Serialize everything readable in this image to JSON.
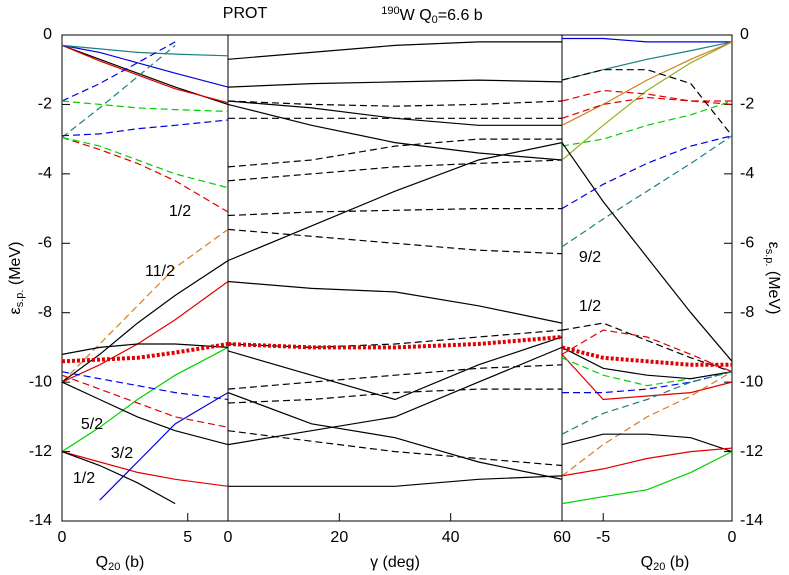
{
  "title": "PROT",
  "nucleus": {
    "mass": "190",
    "symbol": "W Q",
    "sub": "0",
    "rest": "=6.6 b"
  },
  "y_label": {
    "main": "ε",
    "sub": "s.p.",
    "unit": " (MeV)"
  },
  "chart_data": [
    {
      "type": "line",
      "x_label": {
        "main": "Q",
        "sub": "20",
        "unit": " (b)"
      },
      "xlim": [
        0,
        6.6
      ],
      "xticks": [
        0,
        5
      ],
      "ylim": [
        -14,
        0
      ],
      "yticks": [
        -14,
        -12,
        -10,
        -8,
        -6,
        -4,
        -2,
        0
      ],
      "annotations": [
        "1/2",
        "11/2",
        "5/2",
        "3/2",
        "1/2"
      ],
      "x": [
        0,
        1.5,
        3,
        4.5,
        6.6
      ],
      "series": [
        {
          "color": "#000",
          "style": "solid",
          "values": [
            -0.3,
            -0.7,
            -1.1,
            -1.5,
            -2.0
          ]
        },
        {
          "color": "#e00000",
          "style": "solid",
          "values": [
            -0.3,
            -0.75,
            -1.15,
            -1.55,
            -1.95
          ]
        },
        {
          "color": "#0000e0",
          "style": "solid",
          "values": [
            -0.3,
            -0.5,
            -0.8,
            -1.1,
            -1.5
          ]
        },
        {
          "color": "#1a8080",
          "style": "solid",
          "values": [
            -0.3,
            -0.4,
            -0.5,
            -0.55,
            -0.6
          ]
        },
        {
          "color": "#0000e0",
          "style": "dashed",
          "values": [
            -1.9,
            -1.4,
            -0.8,
            -0.2,
            null
          ]
        },
        {
          "color": "#1a8080",
          "style": "dashed",
          "values": [
            -2.95,
            -2.1,
            -1.2,
            -0.3,
            null
          ]
        },
        {
          "color": "#00d000",
          "style": "dashed",
          "values": [
            -1.9,
            -2.0,
            -2.1,
            -2.15,
            -2.2
          ]
        },
        {
          "color": "#0000e0",
          "style": "dashed",
          "values": [
            -2.9,
            -2.85,
            -2.7,
            -2.6,
            -2.45
          ]
        },
        {
          "color": "#e00000",
          "style": "dashed",
          "values": [
            -2.95,
            -3.3,
            -3.7,
            -4.2,
            -5.1
          ]
        },
        {
          "color": "#00d000",
          "style": "dashed",
          "values": [
            -2.95,
            -3.2,
            -3.6,
            -4.0,
            -4.4
          ]
        },
        {
          "color": "#d08020",
          "style": "dashed",
          "values": [
            -10,
            -8.9,
            -7.8,
            -6.7,
            -5.6
          ]
        },
        {
          "color": "#000",
          "style": "solid",
          "values": [
            -10,
            -9.2,
            -8.3,
            -7.5,
            -6.5
          ]
        },
        {
          "color": "#e00000",
          "style": "solid",
          "values": [
            -10,
            -9.5,
            -8.9,
            -8.2,
            -7.1
          ]
        },
        {
          "color": "#00d000",
          "style": "solid",
          "values": [
            -12,
            -11.3,
            -10.5,
            -9.8,
            -9.0
          ]
        },
        {
          "color": "#000",
          "style": "solid",
          "values": [
            -9.2,
            -9.0,
            -8.9,
            -8.9,
            -9.0
          ]
        },
        {
          "color": "#0000e0",
          "style": "dashed",
          "values": [
            -9.7,
            -9.9,
            -10.1,
            -10.3,
            -10.5
          ]
        },
        {
          "color": "#e00000",
          "style": "dashed",
          "values": [
            -9.8,
            -10.2,
            -10.6,
            -11.0,
            -11.3
          ]
        },
        {
          "color": "#000",
          "style": "solid",
          "values": [
            -10,
            -10.5,
            -11.0,
            -11.4,
            -11.8
          ]
        },
        {
          "color": "#e00000",
          "style": "solid",
          "values": [
            -12,
            -12.3,
            -12.6,
            -12.8,
            -13.0
          ]
        },
        {
          "color": "#0000e0",
          "style": "solid",
          "values": [
            null,
            -13.4,
            -12.3,
            -11.2,
            -10.3
          ]
        },
        {
          "color": "#000",
          "style": "solid",
          "values": [
            -12,
            -12.4,
            -12.9,
            -13.5,
            null
          ]
        },
        {
          "color": "#e00000",
          "style": "dotted",
          "values": [
            -9.4,
            -9.35,
            -9.3,
            -9.15,
            -8.9
          ]
        }
      ]
    },
    {
      "type": "line",
      "x_label": {
        "main": "γ",
        "unit": " (deg)"
      },
      "xlim": [
        0,
        60
      ],
      "xticks": [
        0,
        20,
        40,
        60
      ],
      "ylim": [
        -14,
        0
      ],
      "x": [
        0,
        15,
        30,
        45,
        60
      ],
      "series": [
        {
          "color": "#000",
          "style": "solid",
          "values": [
            -0.7,
            -0.5,
            -0.3,
            -0.2,
            -0.2
          ]
        },
        {
          "color": "#000",
          "style": "solid",
          "values": [
            -1.5,
            -1.4,
            -1.35,
            -1.3,
            -1.35
          ]
        },
        {
          "color": "#000",
          "style": "solid",
          "values": [
            -1.9,
            -2.1,
            -2.4,
            -2.6,
            -2.6
          ]
        },
        {
          "color": "#000",
          "style": "solid",
          "values": [
            -2.0,
            -2.6,
            -3.1,
            -3.4,
            -3.6
          ]
        },
        {
          "color": "#000",
          "style": "dashed",
          "values": [
            -1.9,
            -2.0,
            -2.05,
            -2.0,
            -1.9
          ]
        },
        {
          "color": "#000",
          "style": "dashed",
          "values": [
            -2.4,
            -2.4,
            -2.4,
            -2.4,
            -2.4
          ]
        },
        {
          "color": "#000",
          "style": "dashed",
          "values": [
            -3.8,
            -3.6,
            -3.2,
            -3.0,
            -3.0
          ]
        },
        {
          "color": "#000",
          "style": "dashed",
          "values": [
            -4.2,
            -4.0,
            -3.8,
            -3.7,
            -3.6
          ]
        },
        {
          "color": "#000",
          "style": "dashed",
          "values": [
            -5.2,
            -5.1,
            -5.05,
            -5.0,
            -5.0
          ]
        },
        {
          "color": "#000",
          "style": "dashed",
          "values": [
            -5.6,
            -5.8,
            -6.0,
            -6.2,
            -6.3
          ]
        },
        {
          "color": "#000",
          "style": "solid",
          "values": [
            -6.5,
            -5.5,
            -4.5,
            -3.6,
            -3.1
          ]
        },
        {
          "color": "#000",
          "style": "solid",
          "values": [
            -7.1,
            -7.3,
            -7.4,
            -7.8,
            -8.3
          ]
        },
        {
          "color": "#000",
          "style": "dashed",
          "values": [
            -8.9,
            -9.0,
            -8.9,
            -8.7,
            -8.5
          ]
        },
        {
          "color": "#000",
          "style": "solid",
          "values": [
            -9.1,
            -9.8,
            -10.5,
            -9.5,
            -8.7
          ]
        },
        {
          "color": "#000",
          "style": "dashed",
          "values": [
            -10.2,
            -10.0,
            -9.8,
            -9.6,
            -9.5
          ]
        },
        {
          "color": "#000",
          "style": "dashed",
          "values": [
            -10.6,
            -10.5,
            -10.3,
            -10.2,
            -10.2
          ]
        },
        {
          "color": "#000",
          "style": "solid",
          "values": [
            -10.3,
            -11.2,
            -11.6,
            -12.3,
            -12.8
          ]
        },
        {
          "color": "#000",
          "style": "dashed",
          "values": [
            -11.4,
            -11.7,
            -12.0,
            -12.2,
            -12.4
          ]
        },
        {
          "color": "#000",
          "style": "solid",
          "values": [
            -13.0,
            -13.0,
            -13.0,
            -12.8,
            -12.7
          ]
        },
        {
          "color": "#000",
          "style": "solid",
          "values": [
            -11.8,
            -11.4,
            -11.0,
            -10.0,
            -9.0
          ]
        },
        {
          "color": "#e00000",
          "style": "dotted",
          "values": [
            -8.9,
            -9.0,
            -9.0,
            -8.9,
            -8.7
          ]
        }
      ]
    },
    {
      "type": "line",
      "x_label": {
        "main": "Q",
        "sub": "20",
        "unit": " (b)"
      },
      "xlim": [
        -6.6,
        0
      ],
      "xticks": [
        -5,
        0
      ],
      "ylim": [
        -14,
        0
      ],
      "annotations": [
        "9/2",
        "1/2"
      ],
      "x": [
        -6.6,
        -5,
        -3.3,
        -1.6,
        0
      ],
      "series": [
        {
          "color": "#0000e0",
          "style": "solid",
          "values": [
            -0.1,
            -0.1,
            -0.2,
            -0.2,
            -0.2
          ]
        },
        {
          "color": "#1a8080",
          "style": "solid",
          "values": [
            -1.3,
            -1.0,
            -0.7,
            -0.45,
            -0.2
          ]
        },
        {
          "color": "#90b020",
          "style": "solid",
          "values": [
            -3.6,
            -2.6,
            -1.6,
            -0.8,
            -0.2
          ]
        },
        {
          "color": "#d08020",
          "style": "solid",
          "values": [
            -2.6,
            -2.0,
            -1.3,
            -0.7,
            -0.2
          ]
        },
        {
          "color": "#e00000",
          "style": "dashed",
          "values": [
            -1.9,
            -1.6,
            -1.7,
            -1.9,
            -1.9
          ]
        },
        {
          "color": "#e00000",
          "style": "dashed",
          "values": [
            -2.4,
            -2.0,
            -1.8,
            -1.9,
            -2.0
          ]
        },
        {
          "color": "#000",
          "style": "dashed",
          "values": [
            -1.3,
            -1.0,
            -1.0,
            -1.4,
            -2.9
          ]
        },
        {
          "color": "#00d000",
          "style": "dashed",
          "values": [
            -3.2,
            -3.0,
            -2.6,
            -2.3,
            -1.9
          ]
        },
        {
          "color": "#0000e0",
          "style": "dashed",
          "values": [
            -5.0,
            -4.3,
            -3.7,
            -3.2,
            -2.9
          ]
        },
        {
          "color": "#1a8080",
          "style": "dashed",
          "values": [
            -6.1,
            -5.3,
            -4.5,
            -3.7,
            -2.9
          ]
        },
        {
          "color": "#000",
          "style": "solid",
          "values": [
            -3.1,
            -4.8,
            -6.4,
            -8.0,
            -9.4
          ]
        },
        {
          "color": "#000",
          "style": "dashed",
          "values": [
            -8.5,
            -8.3,
            -8.8,
            -9.3,
            -9.7
          ]
        },
        {
          "color": "#e00000",
          "style": "dashed",
          "values": [
            -9.2,
            -8.5,
            -8.7,
            -9.2,
            -9.7
          ]
        },
        {
          "color": "#e00000",
          "style": "solid",
          "values": [
            -9.2,
            -10.5,
            -10.4,
            -10.3,
            -10.0
          ]
        },
        {
          "color": "#00d000",
          "style": "dashed",
          "values": [
            -9.3,
            -9.8,
            -10.1,
            -9.9,
            -9.7
          ]
        },
        {
          "color": "#000",
          "style": "solid",
          "values": [
            -9.0,
            -9.6,
            -9.8,
            -9.9,
            -9.7
          ]
        },
        {
          "color": "#0000e0",
          "style": "dashed",
          "values": [
            -10.3,
            -10.3,
            -10.2,
            -10.0,
            -9.7
          ]
        },
        {
          "color": "#d08020",
          "style": "dashed",
          "values": [
            -12.7,
            -11.8,
            -11.0,
            -10.4,
            -9.7
          ]
        },
        {
          "color": "#1a8080",
          "style": "dashed",
          "values": [
            -11.5,
            -10.9,
            -10.5,
            -10.0,
            -9.7
          ]
        },
        {
          "color": "#000",
          "style": "solid",
          "values": [
            -11.8,
            -11.5,
            -11.5,
            -11.6,
            -12.0
          ]
        },
        {
          "color": "#e00000",
          "style": "solid",
          "values": [
            -12.7,
            -12.5,
            -12.2,
            -12.0,
            -11.9
          ]
        },
        {
          "color": "#00d000",
          "style": "solid",
          "values": [
            -13.5,
            -13.3,
            -13.1,
            -12.6,
            -12.0
          ]
        },
        {
          "color": "#e00000",
          "style": "dotted",
          "values": [
            -9.0,
            -9.3,
            -9.4,
            -9.5,
            -9.5
          ]
        }
      ]
    }
  ]
}
